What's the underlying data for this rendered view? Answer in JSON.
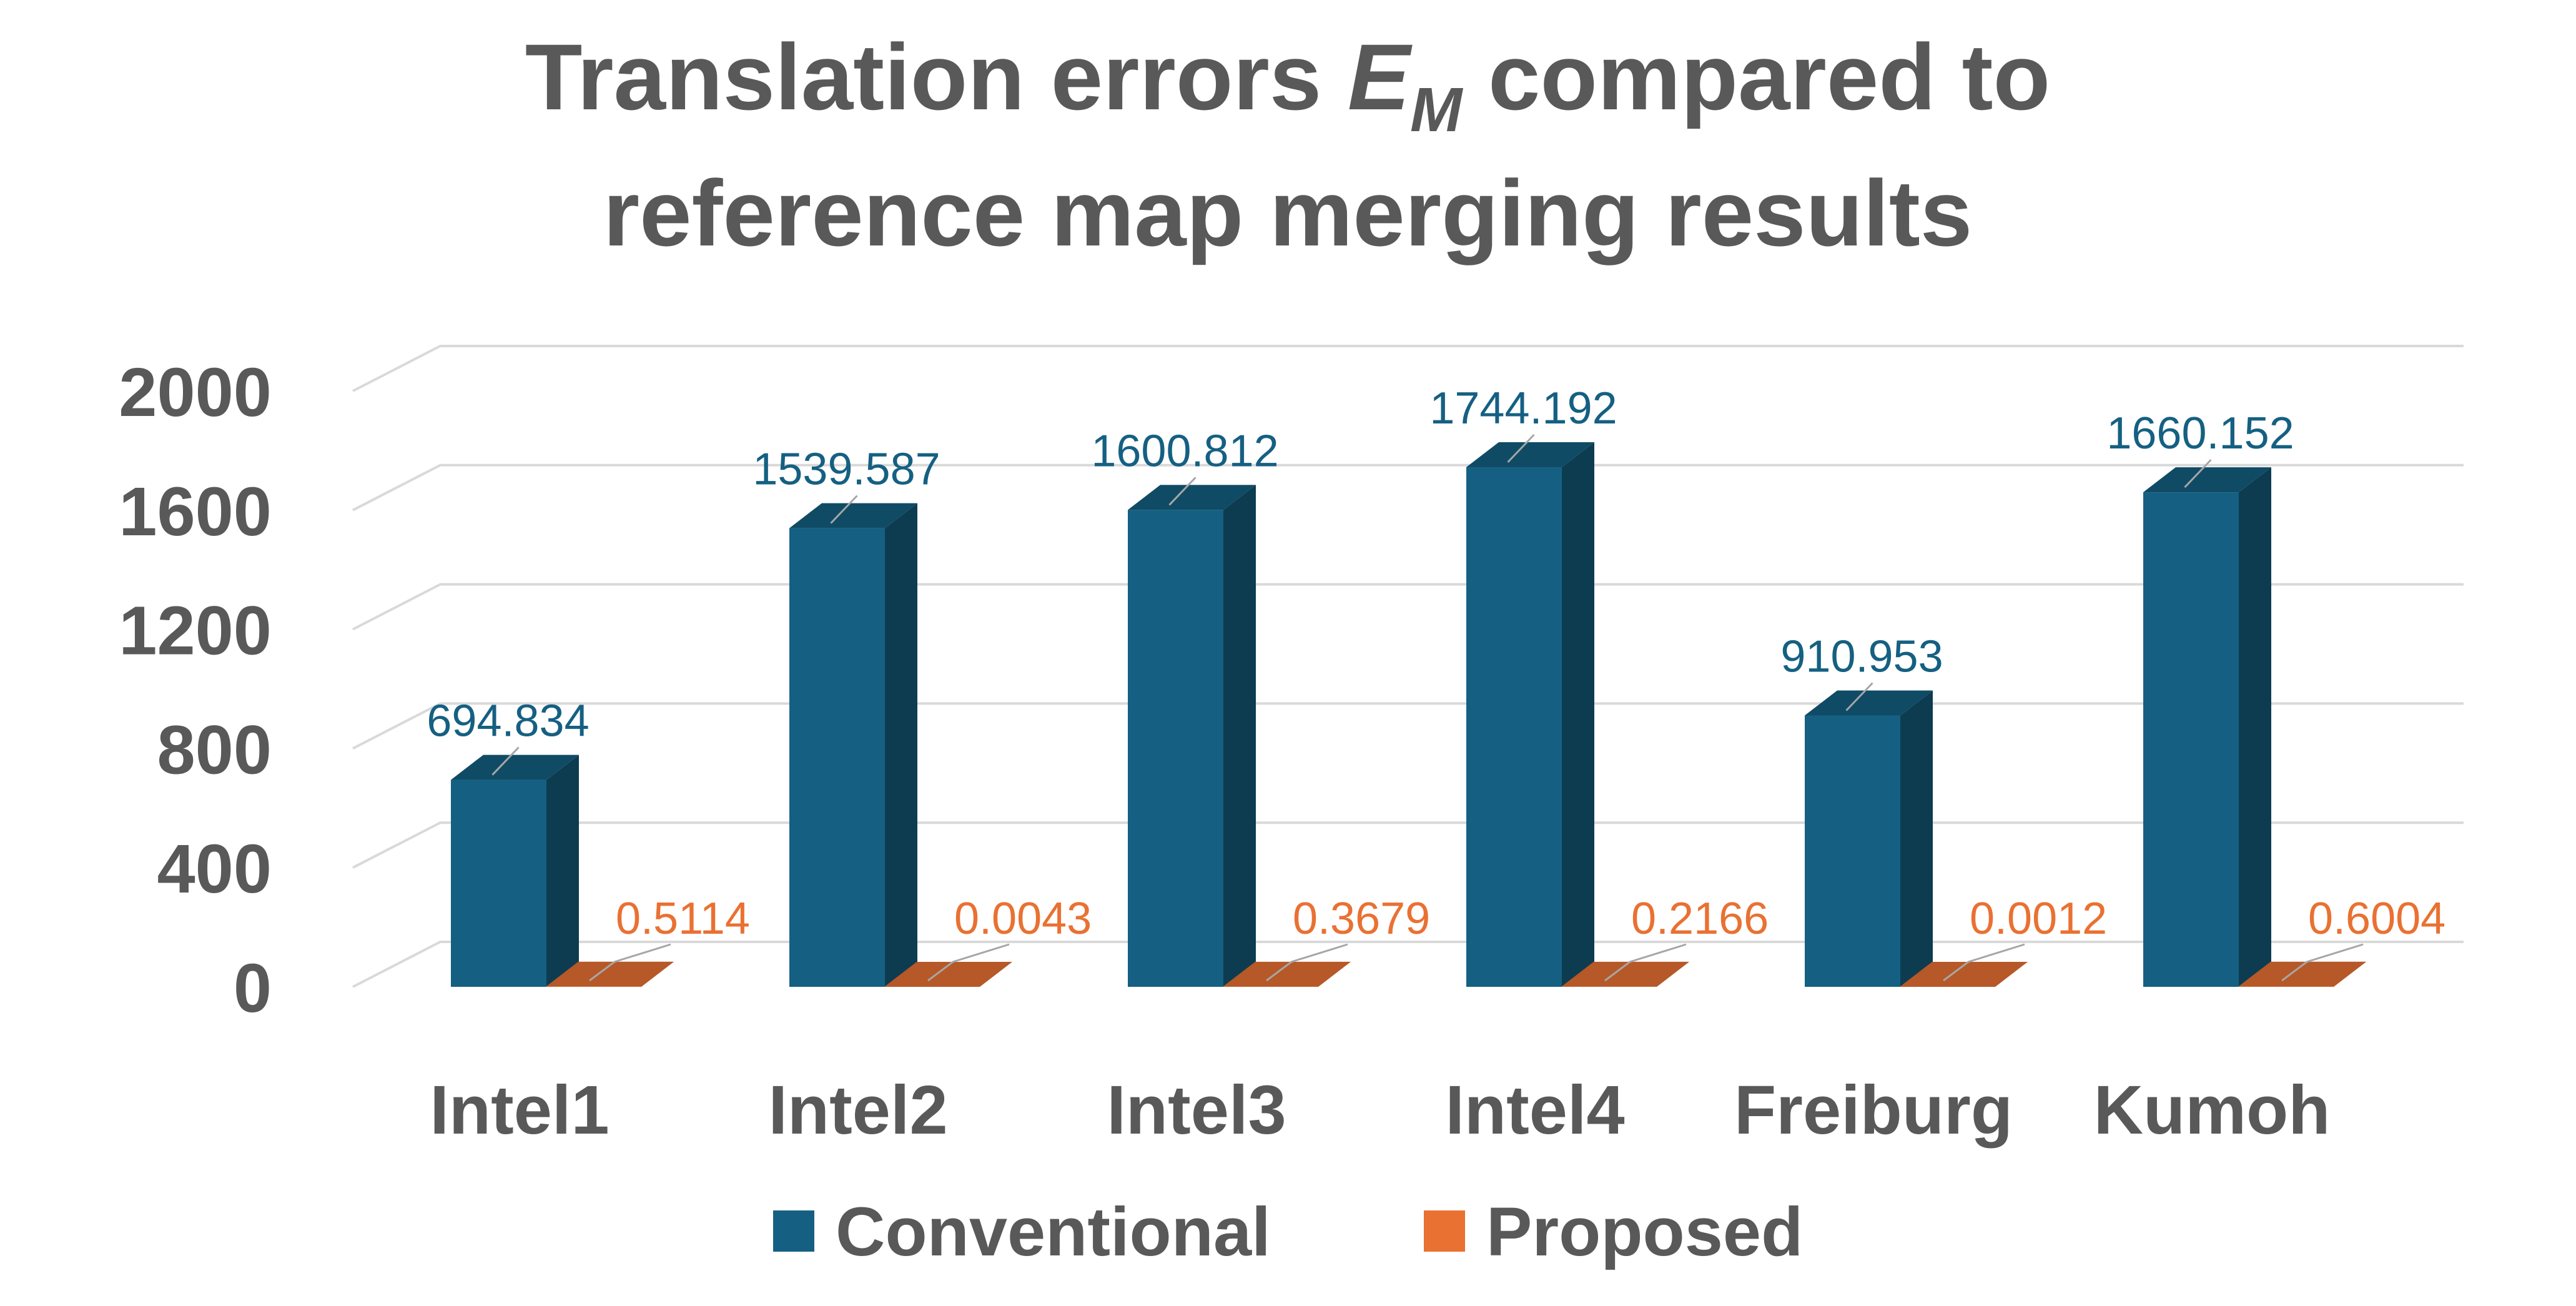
{
  "chart_data": {
    "type": "bar",
    "title_prefix": "Translation errors ",
    "title_symbol": "E",
    "title_subscript": "M",
    "title_suffix": " compared to",
    "title_line2": "reference map merging results",
    "categories": [
      "Intel1",
      "Intel2",
      "Intel3",
      "Intel4",
      "Freiburg",
      "Kumoh"
    ],
    "series": [
      {
        "name": "Conventional",
        "color": "#156082",
        "values": [
          694.834,
          1539.587,
          1600.812,
          1744.192,
          910.953,
          1660.152
        ],
        "labels": [
          "694.834",
          "1539.587",
          "1600.812",
          "1744.192",
          "910.953",
          "1660.152"
        ]
      },
      {
        "name": "Proposed",
        "color": "#e97132",
        "values": [
          0.5114,
          0.0043,
          0.3679,
          0.2166,
          0.0012,
          0.6004
        ],
        "labels": [
          "0.5114",
          "0.0043",
          "0.3679",
          "0.2166",
          "0.0012",
          "0.6004"
        ]
      }
    ],
    "yticks": [
      "0",
      "400",
      "800",
      "1200",
      "1600",
      "2000"
    ],
    "ylim": [
      0,
      2000
    ],
    "grid": true,
    "legend_position": "bottom",
    "style": "3d-column"
  }
}
